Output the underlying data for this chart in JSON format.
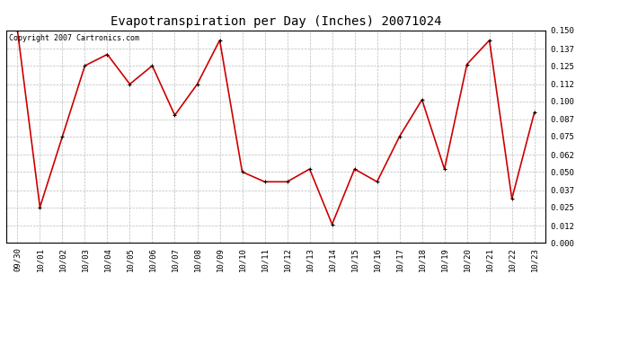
{
  "title": "Evapotranspiration per Day (Inches) 20071024",
  "copyright": "Copyright 2007 Cartronics.com",
  "x_labels": [
    "09/30",
    "10/01",
    "10/02",
    "10/03",
    "10/04",
    "10/05",
    "10/06",
    "10/07",
    "10/08",
    "10/09",
    "10/10",
    "10/11",
    "10/12",
    "10/13",
    "10/14",
    "10/15",
    "10/16",
    "10/17",
    "10/18",
    "10/19",
    "10/20",
    "10/21",
    "10/22",
    "10/23"
  ],
  "y_values": [
    0.15,
    0.025,
    0.075,
    0.125,
    0.133,
    0.112,
    0.125,
    0.09,
    0.112,
    0.143,
    0.05,
    0.043,
    0.043,
    0.052,
    0.013,
    0.052,
    0.043,
    0.075,
    0.101,
    0.052,
    0.126,
    0.143,
    0.031,
    0.092
  ],
  "line_color": "#cc0000",
  "marker_color": "#000000",
  "marker_size": 3,
  "line_width": 1.2,
  "ylim": [
    0.0,
    0.15
  ],
  "yticks": [
    0.0,
    0.012,
    0.025,
    0.037,
    0.05,
    0.062,
    0.075,
    0.087,
    0.1,
    0.112,
    0.125,
    0.137,
    0.15
  ],
  "background_color": "#ffffff",
  "grid_color": "#bbbbbb",
  "title_fontsize": 10,
  "copyright_fontsize": 6,
  "tick_fontsize": 6.5
}
